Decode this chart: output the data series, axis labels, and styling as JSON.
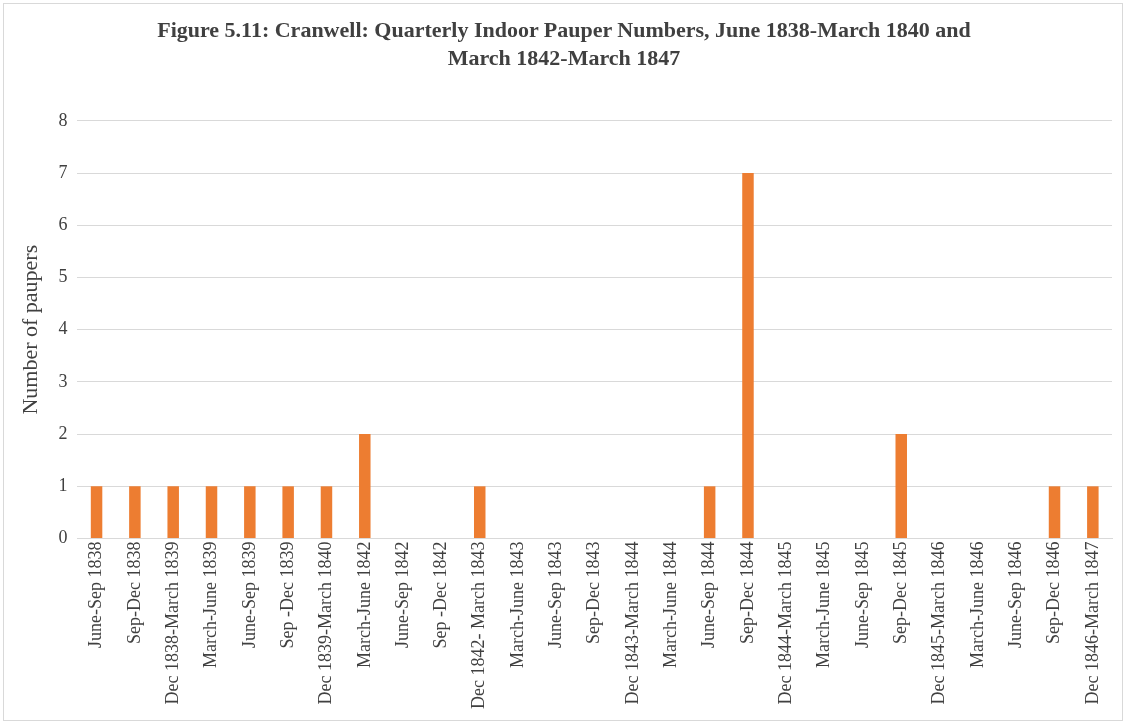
{
  "chart_data": {
    "type": "bar",
    "title": "Figure 5.11: Cranwell: Quarterly Indoor Pauper Numbers, June 1838-March 1840 and March 1842-March 1847",
    "ylabel": "Number of paupers",
    "categories": [
      "June-Sep 1838",
      "Sep-Dec 1838",
      "Dec 1838-March 1839",
      "March-June 1839",
      "June-Sep 1839",
      "Sep -Dec 1839",
      "Dec 1839-March 1840",
      "March-June 1842",
      "June-Sep 1842",
      "Sep -Dec 1842",
      "Dec 1842- March 1843",
      "March-June 1843",
      "June-Sep 1843",
      "Sep-Dec 1843",
      "Dec 1843-March 1844",
      "March-June 1844",
      "June-Sep 1844",
      "Sep-Dec 1844",
      "Dec 1844-March 1845",
      "March-June 1845",
      "June-Sep 1845",
      "Sep-Dec 1845",
      "Dec 1845-March 1846",
      "March-June 1846",
      "June-Sep 1846",
      "Sep-Dec 1846",
      "Dec 1846-March 1847"
    ],
    "values": [
      1,
      1,
      1,
      1,
      1,
      1,
      1,
      2,
      0,
      0,
      1,
      0,
      0,
      0,
      0,
      0,
      1,
      7,
      0,
      0,
      0,
      2,
      0,
      0,
      0,
      1,
      1
    ],
    "color": "#ed7d31",
    "ylim": [
      0,
      8
    ],
    "yticks": [
      0,
      1,
      2,
      3,
      4,
      5,
      6,
      7,
      8
    ],
    "grid": "y",
    "legend": false
  }
}
